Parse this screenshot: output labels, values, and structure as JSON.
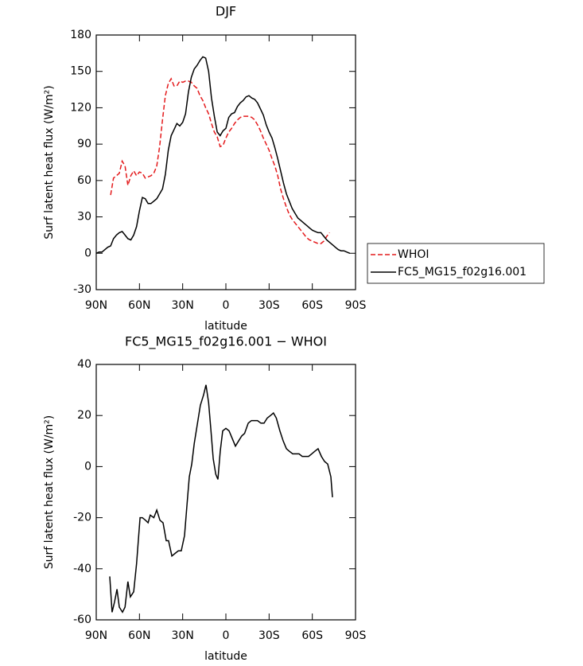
{
  "chart_data": [
    {
      "type": "line",
      "title": "DJF",
      "xlabel": "latitude",
      "ylabel": "Surf latent heat flux (W/m²)",
      "xlim": [
        90,
        -90
      ],
      "xticks": [
        {
          "value": 90,
          "label": "90N"
        },
        {
          "value": 60,
          "label": "60N"
        },
        {
          "value": 30,
          "label": "30N"
        },
        0,
        {
          "value": -30,
          "label": "30S"
        },
        {
          "value": -60,
          "label": "60S"
        },
        {
          "value": -90,
          "label": "90S"
        }
      ],
      "ylim": [
        -30,
        180
      ],
      "yticks": [
        -30,
        0,
        30,
        60,
        90,
        120,
        150,
        180
      ],
      "legend": "right",
      "series": [
        {
          "name": "WHOI",
          "color": "#e41a1c",
          "linestyle": "dashed",
          "x": [
            80,
            78,
            76,
            74,
            72,
            70,
            68,
            66,
            64,
            62,
            60,
            58,
            56,
            54,
            52,
            50,
            48,
            46,
            44,
            42,
            40,
            38,
            36,
            34,
            32,
            30,
            28,
            26,
            24,
            22,
            20,
            18,
            16,
            14,
            12,
            10,
            8,
            6,
            4,
            2,
            0,
            -2,
            -4,
            -6,
            -8,
            -10,
            -12,
            -14,
            -16,
            -18,
            -20,
            -22,
            -24,
            -26,
            -28,
            -30,
            -32,
            -34,
            -36,
            -38,
            -40,
            -42,
            -44,
            -46,
            -48,
            -50,
            -52,
            -54,
            -56,
            -58,
            -60,
            -62,
            -64,
            -66,
            -68,
            -70,
            -72
          ],
          "values": [
            48,
            62,
            64,
            66,
            76,
            72,
            56,
            64,
            68,
            64,
            67,
            66,
            62,
            63,
            64,
            66,
            72,
            88,
            110,
            130,
            140,
            144,
            138,
            138,
            142,
            141,
            142,
            142,
            141,
            138,
            136,
            130,
            126,
            120,
            115,
            107,
            100,
            96,
            88,
            89,
            95,
            100,
            103,
            107,
            110,
            112,
            113,
            113,
            113,
            112,
            110,
            106,
            101,
            95,
            90,
            85,
            78,
            72,
            64,
            53,
            45,
            38,
            32,
            28,
            25,
            22,
            19,
            16,
            13,
            11,
            10,
            9,
            8,
            8,
            10,
            14,
            17
          ]
        },
        {
          "name": "FC5_MG15_f02g16.001",
          "color": "#000000",
          "linestyle": "solid",
          "x": [
            90,
            88,
            86,
            84,
            82,
            80,
            78,
            76,
            74,
            72,
            70,
            68,
            66,
            64,
            62,
            60,
            58,
            56,
            54,
            52,
            50,
            48,
            46,
            44,
            42,
            40,
            38,
            36,
            34,
            32,
            30,
            28,
            26,
            24,
            22,
            20,
            18,
            16,
            14,
            12,
            10,
            8,
            6,
            4,
            2,
            0,
            -2,
            -4,
            -6,
            -8,
            -10,
            -12,
            -14,
            -16,
            -18,
            -20,
            -22,
            -24,
            -26,
            -28,
            -30,
            -32,
            -34,
            -36,
            -38,
            -40,
            -42,
            -44,
            -46,
            -48,
            -50,
            -52,
            -54,
            -56,
            -58,
            -60,
            -62,
            -64,
            -66,
            -68,
            -70,
            -72,
            -74,
            -76,
            -78,
            -80,
            -82,
            -84,
            -86
          ],
          "values": [
            0,
            1,
            1,
            3,
            5,
            6,
            12,
            15,
            17,
            18,
            15,
            12,
            11,
            15,
            22,
            35,
            46,
            45,
            41,
            41,
            43,
            45,
            49,
            53,
            65,
            85,
            97,
            102,
            107,
            105,
            108,
            115,
            133,
            145,
            152,
            155,
            159,
            162,
            161,
            150,
            128,
            113,
            100,
            97,
            101,
            103,
            112,
            115,
            116,
            121,
            124,
            126,
            129,
            130,
            128,
            127,
            124,
            119,
            114,
            106,
            100,
            95,
            87,
            78,
            68,
            58,
            49,
            43,
            37,
            33,
            29,
            27,
            25,
            23,
            21,
            19,
            18,
            17,
            17,
            14,
            11,
            9,
            7,
            5,
            3,
            2,
            2,
            1,
            0
          ]
        }
      ]
    },
    {
      "type": "line",
      "title": "FC5_MG15_f02g16.001 − WHOI",
      "xlabel": "latitude",
      "ylabel": "Surf latent heat flux (W/m²)",
      "xlim": [
        90,
        -90
      ],
      "xticks": [
        {
          "value": 90,
          "label": "90N"
        },
        {
          "value": 60,
          "label": "60N"
        },
        {
          "value": 30,
          "label": "30N"
        },
        0,
        {
          "value": -30,
          "label": "30S"
        },
        {
          "value": -60,
          "label": "60S"
        },
        {
          "value": -90,
          "label": "90S"
        }
      ],
      "ylim": [
        -60,
        40
      ],
      "yticks": [
        -60,
        -40,
        -20,
        0,
        20,
        40
      ],
      "color": "#000000",
      "x": [
        80.6,
        79,
        77.3,
        75.6,
        74,
        71.8,
        70,
        68,
        66.3,
        64,
        62,
        59.6,
        58,
        55.8,
        54,
        52.5,
        50,
        48,
        45.8,
        43.6,
        41.4,
        39.8,
        37.5,
        35.3,
        33,
        31,
        28.7,
        27,
        25.4,
        23.7,
        22,
        20,
        17.7,
        15.5,
        13.8,
        12,
        10.5,
        8.8,
        7,
        5.5,
        3.9,
        2.2,
        0,
        -2.2,
        -4.4,
        -6.6,
        -8.8,
        -11,
        -13,
        -15.5,
        -17.7,
        -20,
        -22,
        -24.3,
        -26.5,
        -28.7,
        -31,
        -33,
        -35,
        -37.5,
        -39.8,
        -42,
        -44,
        -46.4,
        -48.6,
        -50.8,
        -53,
        -55,
        -57.4,
        -59.6,
        -61.8,
        -64,
        -66.3,
        -68.5,
        -70.7,
        -72.9,
        -74
      ],
      "values": [
        -43,
        -57,
        -53,
        -48,
        -55,
        -57,
        -55,
        -45,
        -51,
        -49,
        -38,
        -20,
        -20,
        -21,
        -22,
        -19,
        -20,
        -17,
        -21,
        -22,
        -29,
        -29,
        -35,
        -34,
        -33,
        -33,
        -27,
        -15,
        -4,
        1,
        9,
        16,
        24,
        28,
        32,
        25,
        15,
        3,
        -3,
        -5,
        6,
        14,
        15,
        14,
        11,
        8,
        10,
        12,
        13,
        17,
        18,
        18,
        18,
        17,
        17,
        19,
        20,
        21,
        19,
        14,
        10,
        7,
        6,
        5,
        5,
        5,
        4,
        4,
        4,
        5,
        6,
        7,
        4,
        2,
        1,
        -4,
        -12
      ]
    }
  ]
}
